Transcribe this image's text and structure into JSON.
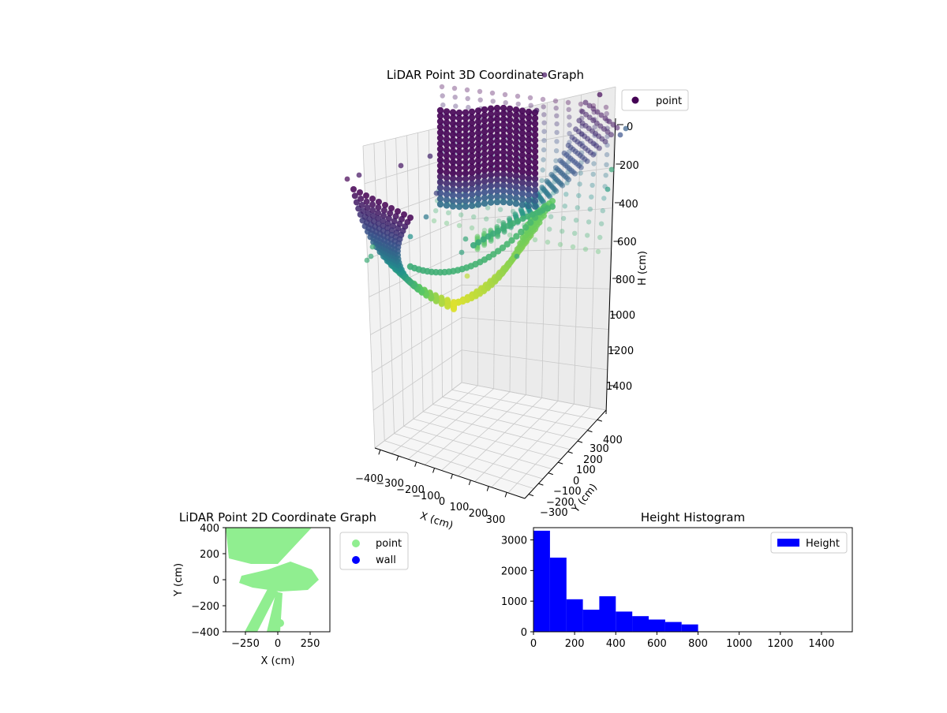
{
  "figure": {
    "background": "#ffffff"
  },
  "chart_data": [
    {
      "type": "scatter",
      "projection": "3d",
      "title": "LiDAR Point 3D Coordinate Graph",
      "xlabel": "X (cm)",
      "ylabel": "Y (cm)",
      "zlabel": "H (cm)",
      "x_ticks": [
        "−400",
        "−300",
        "−200",
        "−100",
        "0",
        "100",
        "200",
        "300"
      ],
      "y_ticks": [
        "−300",
        "−200",
        "−100",
        "0",
        "100",
        "200",
        "300",
        "400"
      ],
      "z_ticks": [
        "0",
        "200",
        "400",
        "600",
        "800",
        "1000",
        "1200",
        "1400"
      ],
      "xlim": [
        -400,
        400
      ],
      "ylim": [
        -400,
        400
      ],
      "zlim": [
        0,
        1550
      ],
      "z_inverted": true,
      "colormap": "viridis",
      "legend": {
        "entries": [
          "point"
        ],
        "placement": "upper-right outside",
        "marker_color": "#440154"
      },
      "grid": true
    },
    {
      "type": "scatter",
      "title": "LiDAR Point 2D Coordinate Graph",
      "xlabel": "X (cm)",
      "ylabel": "Y (cm)",
      "x_ticks": [
        "−250",
        "0",
        "250"
      ],
      "y_ticks": [
        "400",
        "200",
        "0",
        "−200",
        "−400"
      ],
      "xlim": [
        -400,
        400
      ],
      "ylim": [
        -400,
        400
      ],
      "series": [
        {
          "name": "point",
          "color": "#90ee90"
        },
        {
          "name": "wall",
          "color": "#0000ff"
        }
      ],
      "legend": {
        "placement": "upper-right outside"
      }
    },
    {
      "type": "bar",
      "title": "Height Histogram",
      "xlabel": "",
      "ylabel": "",
      "x_ticks": [
        "0",
        "200",
        "400",
        "600",
        "800",
        "1000",
        "1200",
        "1400"
      ],
      "y_ticks": [
        "0",
        "1000",
        "2000",
        "3000"
      ],
      "xlim": [
        0,
        1550
      ],
      "ylim": [
        0,
        3400
      ],
      "bin_width": 80,
      "bins": [
        {
          "x0": 0,
          "value": 3300
        },
        {
          "x0": 80,
          "value": 2420
        },
        {
          "x0": 160,
          "value": 1060
        },
        {
          "x0": 240,
          "value": 720
        },
        {
          "x0": 320,
          "value": 1160
        },
        {
          "x0": 400,
          "value": 660
        },
        {
          "x0": 480,
          "value": 510
        },
        {
          "x0": 560,
          "value": 400
        },
        {
          "x0": 640,
          "value": 320
        },
        {
          "x0": 720,
          "value": 240
        }
      ],
      "series": [
        {
          "name": "Height",
          "color": "#0000ff"
        }
      ],
      "legend": {
        "placement": "upper-right"
      }
    }
  ]
}
